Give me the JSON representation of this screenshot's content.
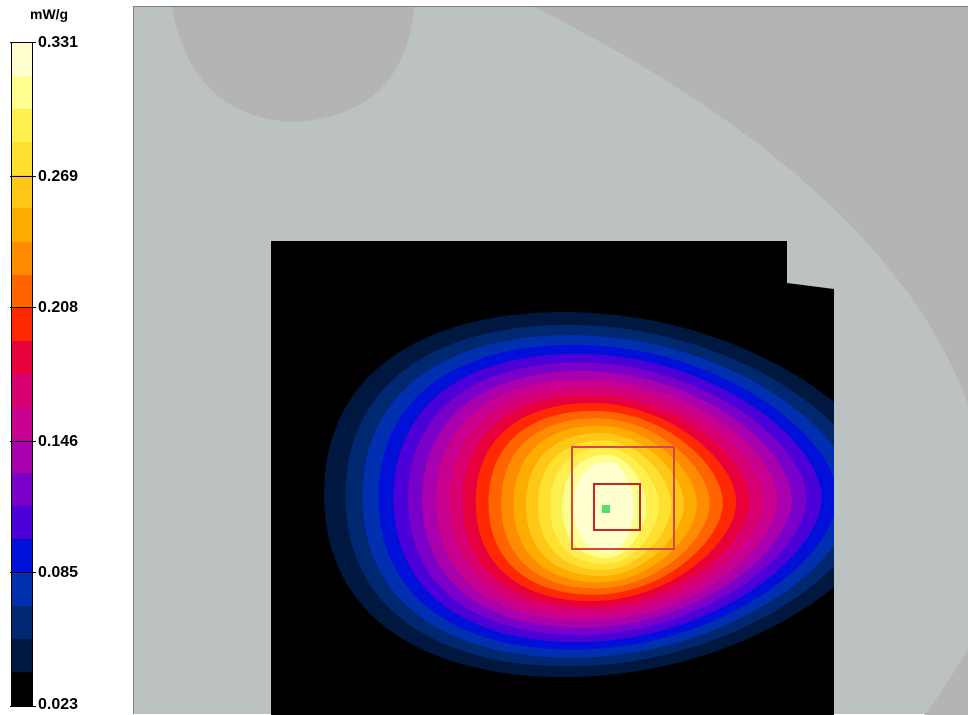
{
  "chart_data": {
    "type": "heatmap",
    "title": "",
    "colorbar": {
      "unit": "mW/g",
      "min": 0.023,
      "max": 0.331,
      "tick_labels": [
        "0.331",
        "0.269",
        "0.208",
        "0.146",
        "0.085",
        "0.023"
      ],
      "tick_values": [
        0.331,
        0.269,
        0.208,
        0.146,
        0.085,
        0.023
      ],
      "colors_top_to_bottom": [
        "#ffffd0",
        "#ffff90",
        "#fff050",
        "#ffe030",
        "#ffc818",
        "#ffac00",
        "#ff8c00",
        "#ff6400",
        "#ff2800",
        "#e8003c",
        "#d80070",
        "#c80090",
        "#a800ac",
        "#7800c8",
        "#4c00d8",
        "#0010d8",
        "#0030b0",
        "#002870",
        "#001840",
        "#000000"
      ]
    },
    "peak_value": 0.331,
    "background_colors": {
      "phantom": "#bcc1c1",
      "outside": "#b4b4b4",
      "scan_area": "#000000"
    }
  }
}
